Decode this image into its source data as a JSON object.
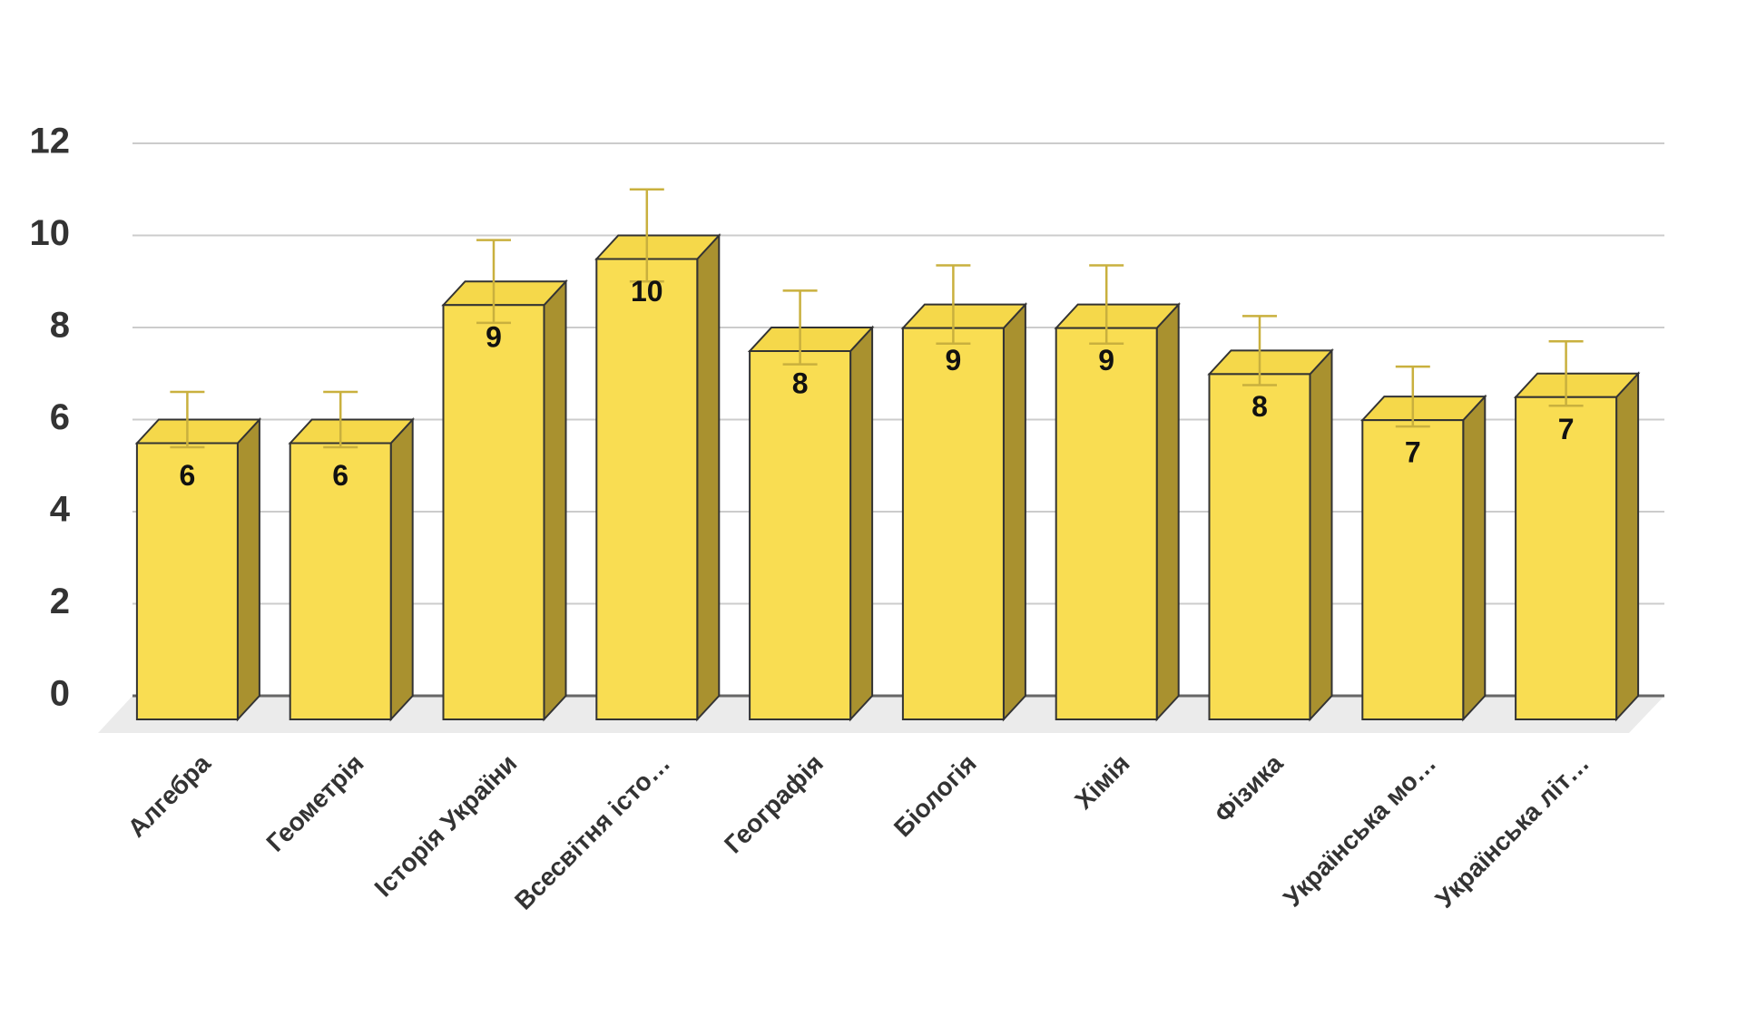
{
  "chart_data": {
    "type": "bar3d",
    "categories": [
      "Алгебра",
      "Геометрія",
      "Історія України",
      "Всесвітня істо…",
      "Географія",
      "Біологія",
      "Хімія",
      "Фізика",
      "Українська мо…",
      "Українська літ…"
    ],
    "values": [
      6,
      6,
      9,
      10,
      8,
      8.5,
      8.5,
      7.5,
      6.5,
      7
    ],
    "value_labels": [
      "6",
      "6",
      "9",
      "10",
      "8",
      "9",
      "9",
      "8",
      "7",
      "7"
    ],
    "errors": [
      0.6,
      0.6,
      0.9,
      1.0,
      0.8,
      0.85,
      0.85,
      0.75,
      0.65,
      0.7
    ],
    "color": "#f9dd52",
    "ylim": [
      0,
      12
    ],
    "yticks": [
      0,
      2,
      4,
      6,
      8,
      10,
      12
    ],
    "grid": true
  }
}
